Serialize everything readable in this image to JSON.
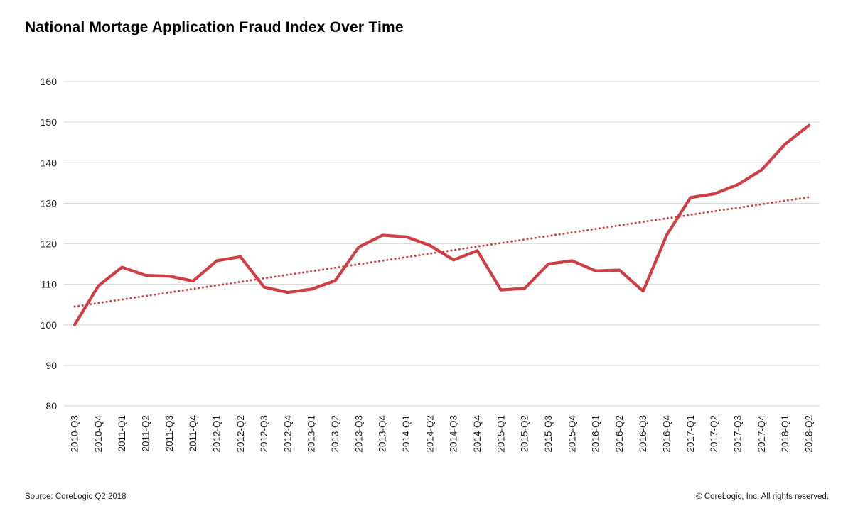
{
  "title": "National Mortage Application Fraud Index Over Time",
  "footer": {
    "source": "Source: CoreLogic Q2 2018",
    "copyright": "© CoreLogic, Inc. All rights reserved."
  },
  "colors": {
    "line": "#cf3e43",
    "trend": "#cf3e43",
    "gridline": "#dcdcdc",
    "tick_text": "#1f1f1f"
  },
  "chart_data": {
    "type": "line",
    "title": "National Mortage Application Fraud Index Over Time",
    "xlabel": "",
    "ylabel": "",
    "ylim": [
      80,
      160
    ],
    "yticks": [
      80,
      90,
      100,
      110,
      120,
      130,
      140,
      150,
      160
    ],
    "grid": "horizontal",
    "legend": "none",
    "categories": [
      "2010-Q3",
      "2010-Q4",
      "2011-Q1",
      "2011-Q2",
      "2011-Q3",
      "2011-Q4",
      "2012-Q1",
      "2012-Q2",
      "2012-Q3",
      "2012-Q4",
      "2013-Q1",
      "2013-Q2",
      "2013-Q3",
      "2013-Q4",
      "2014-Q1",
      "2014-Q2",
      "2014-Q3",
      "2014-Q4",
      "2015-Q1",
      "2015-Q2",
      "2015-Q3",
      "2015-Q4",
      "2016-Q1",
      "2016-Q2",
      "2016-Q3",
      "2016-Q4",
      "2017-Q1",
      "2017-Q2",
      "2017-Q3",
      "2017-Q4",
      "2018-Q1",
      "2018-Q2"
    ],
    "series": [
      {
        "name": "National Mortgage Application Fraud Index",
        "style": "solid",
        "values": [
          100.0,
          109.6,
          114.2,
          112.2,
          112.0,
          110.8,
          115.8,
          116.8,
          109.3,
          108.0,
          108.8,
          110.9,
          119.2,
          122.1,
          121.7,
          119.6,
          116.0,
          118.3,
          108.6,
          109.0,
          115.0,
          115.8,
          113.3,
          113.5,
          108.3,
          122.2,
          131.4,
          132.3,
          134.6,
          138.2,
          144.6,
          149.2
        ]
      }
    ],
    "trendline": {
      "name": "Linear trend",
      "style": "dotted",
      "start_value": 104.5,
      "end_value": 131.5
    }
  }
}
